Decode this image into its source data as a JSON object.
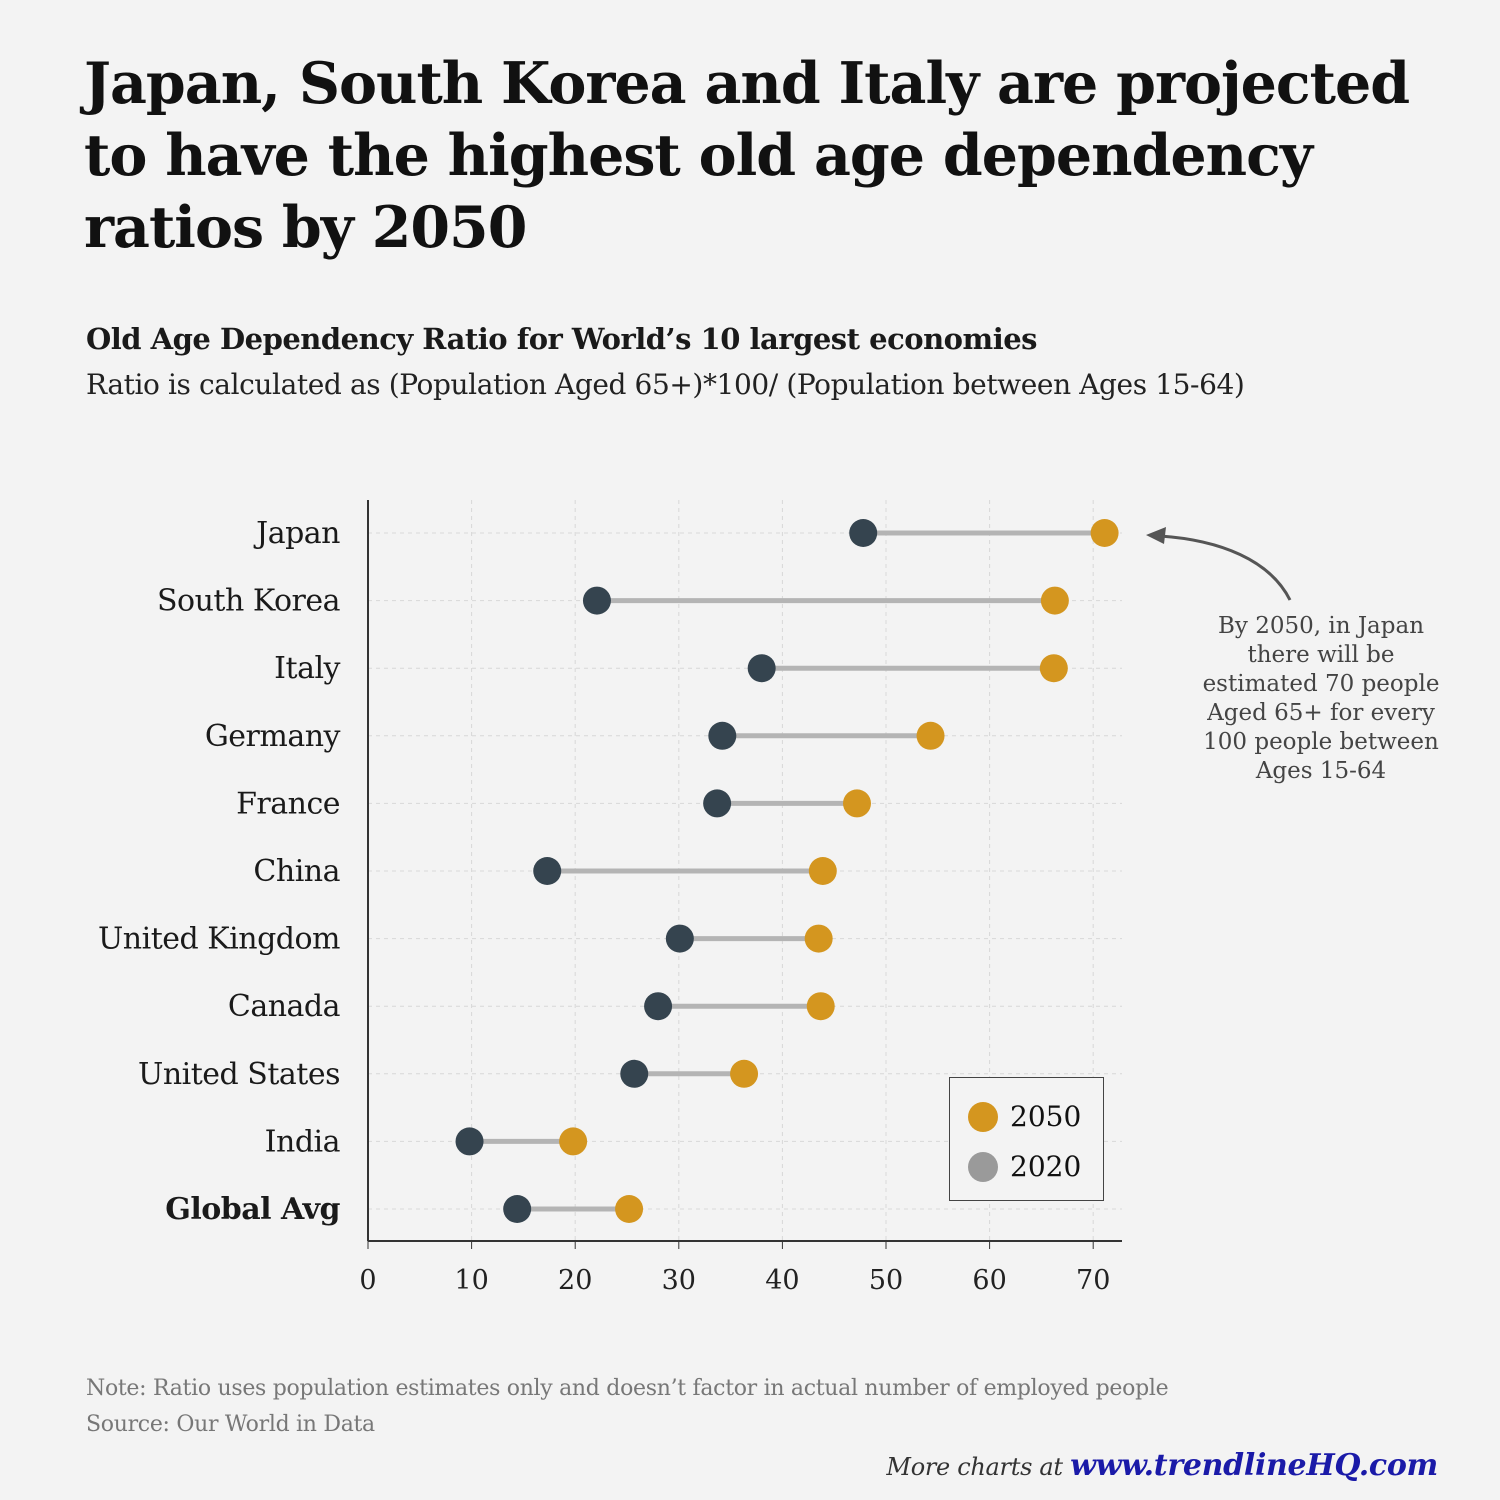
{
  "title": "Japan, South Korea and Italy are projected to have the highest old age dependency ratios by 2050",
  "subtitle": "Old Age Dependency Ratio for World’s 10 largest economies",
  "subtitle2": "Ratio is calculated as (Population Aged 65+)*100/ (Population between Ages 15-64)",
  "annotation": "By 2050, in Japan there will be estimated 70 people Aged 65+ for every 100 people between Ages 15-64",
  "note": "Note: Ratio uses population estimates only and doesn’t factor in actual number of employed people",
  "source": "Source: Our World in Data",
  "footer": {
    "prefix": "More charts at ",
    "link": "www.trendlineHQ.com"
  },
  "colors": {
    "y2050": "#d4961f",
    "y2020": "#35444f",
    "legend2020": "#9a9a9a",
    "connector": "#b4b4b4",
    "grid": "#d8d8d8",
    "axis": "#333333"
  },
  "chart_data": {
    "type": "dumbbell",
    "title": "Old Age Dependency Ratio for World’s 10 largest economies",
    "xlabel": "",
    "ylabel": "",
    "xlim": [
      0,
      72
    ],
    "xticks": [
      0,
      10,
      20,
      30,
      40,
      50,
      60,
      70
    ],
    "grid": true,
    "legend_position": "bottom-right",
    "categories": [
      "Japan",
      "South Korea",
      "Italy",
      "Germany",
      "France",
      "China",
      "United Kingdom",
      "Canada",
      "United States",
      "India",
      "Global Avg"
    ],
    "series": [
      {
        "name": "2020",
        "values": [
          47.8,
          22.1,
          38.0,
          34.2,
          33.7,
          17.3,
          30.1,
          28.0,
          25.7,
          9.8,
          14.4
        ]
      },
      {
        "name": "2050",
        "values": [
          71.1,
          66.3,
          66.2,
          54.3,
          47.2,
          43.9,
          43.5,
          43.7,
          36.3,
          19.8,
          25.2
        ]
      }
    ],
    "legend": [
      "2050",
      "2020"
    ],
    "bold_categories": [
      "Global Avg"
    ]
  }
}
